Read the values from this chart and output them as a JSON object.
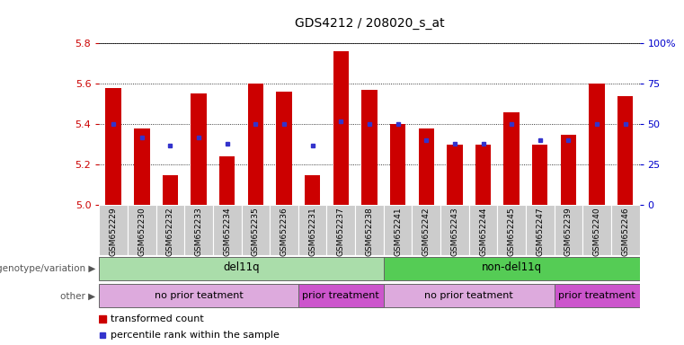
{
  "title": "GDS4212 / 208020_s_at",
  "samples": [
    "GSM652229",
    "GSM652230",
    "GSM652232",
    "GSM652233",
    "GSM652234",
    "GSM652235",
    "GSM652236",
    "GSM652231",
    "GSM652237",
    "GSM652238",
    "GSM652241",
    "GSM652242",
    "GSM652243",
    "GSM652244",
    "GSM652245",
    "GSM652247",
    "GSM652239",
    "GSM652240",
    "GSM652246"
  ],
  "red_values": [
    5.58,
    5.38,
    5.15,
    5.55,
    5.24,
    5.6,
    5.56,
    5.15,
    5.76,
    5.57,
    5.4,
    5.38,
    5.3,
    5.3,
    5.46,
    5.3,
    5.35,
    5.6,
    5.54
  ],
  "blue_values": [
    0.5,
    0.42,
    0.37,
    0.42,
    0.38,
    0.5,
    0.5,
    0.37,
    0.52,
    0.5,
    0.5,
    0.4,
    0.38,
    0.38,
    0.5,
    0.4,
    0.4,
    0.5,
    0.5
  ],
  "ylim_left": [
    5.0,
    5.8
  ],
  "ylim_right": [
    0.0,
    1.0
  ],
  "yticks_left": [
    5.0,
    5.2,
    5.4,
    5.6,
    5.8
  ],
  "yticks_right": [
    0.0,
    0.25,
    0.5,
    0.75,
    1.0
  ],
  "ytick_labels_right": [
    "0",
    "25",
    "50",
    "75",
    "100%"
  ],
  "bar_color": "#cc0000",
  "dot_color": "#3333cc",
  "background_color": "#ffffff",
  "tick_bg_color": "#cccccc",
  "genotype_groups": [
    {
      "label": "del11q",
      "start": 0,
      "end": 9,
      "color": "#aaddaa"
    },
    {
      "label": "non-del11q",
      "start": 10,
      "end": 18,
      "color": "#55cc55"
    }
  ],
  "other_groups": [
    {
      "label": "no prior teatment",
      "start": 0,
      "end": 6,
      "color": "#ddaadd"
    },
    {
      "label": "prior treatment",
      "start": 7,
      "end": 9,
      "color": "#cc55cc"
    },
    {
      "label": "no prior teatment",
      "start": 10,
      "end": 15,
      "color": "#ddaadd"
    },
    {
      "label": "prior treatment",
      "start": 16,
      "end": 18,
      "color": "#cc55cc"
    }
  ],
  "legend_red": "transformed count",
  "legend_blue": "percentile rank within the sample",
  "left_axis_color": "#cc0000",
  "right_axis_color": "#0000cc",
  "n_samples": 19
}
